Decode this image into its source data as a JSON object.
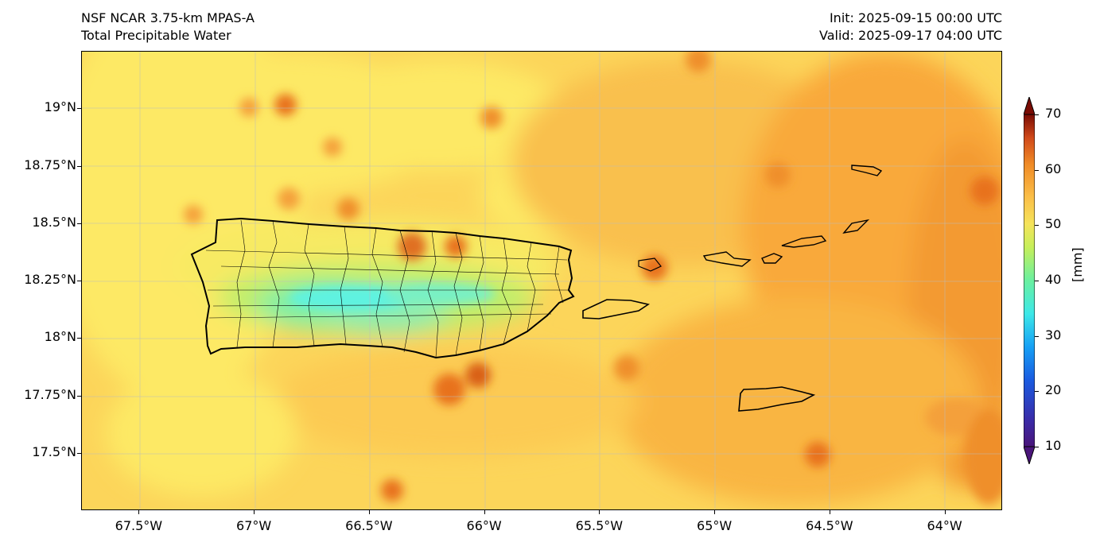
{
  "header": {
    "left_line1": "NSF NCAR 3.75-km MPAS-A",
    "left_line2": "Total Precipitable Water",
    "right_line1": "Init: 2025-09-15 00:00 UTC",
    "right_line2": "Valid: 2025-09-17 04:00 UTC"
  },
  "map": {
    "lon_range": [
      -67.75,
      -63.75
    ],
    "lat_range": [
      17.25,
      19.25
    ],
    "lon_ticks": [
      {
        "value": -67.5,
        "label": "67.5°W"
      },
      {
        "value": -67.0,
        "label": "67°W"
      },
      {
        "value": -66.5,
        "label": "66.5°W"
      },
      {
        "value": -66.0,
        "label": "66°W"
      },
      {
        "value": -65.5,
        "label": "65.5°W"
      },
      {
        "value": -65.0,
        "label": "65°W"
      },
      {
        "value": -64.5,
        "label": "64.5°W"
      },
      {
        "value": -64.0,
        "label": "64°W"
      }
    ],
    "lat_ticks": [
      {
        "value": 19.0,
        "label": "19°N"
      },
      {
        "value": 18.75,
        "label": "18.75°N"
      },
      {
        "value": 18.5,
        "label": "18.5°N"
      },
      {
        "value": 18.25,
        "label": "18.25°N"
      },
      {
        "value": 18.0,
        "label": "18°N"
      },
      {
        "value": 17.75,
        "label": "17.75°N"
      },
      {
        "value": 17.5,
        "label": "17.5°N"
      }
    ],
    "gridlines": true,
    "colors": {
      "background": "#fcd55a",
      "yellow": "#fde965",
      "orange": "#f9a93a",
      "dark_orange": "#e8721b",
      "green": "#9ce86a",
      "cyan": "#5ef2e0"
    }
  },
  "colorbar": {
    "unit": "[mm]",
    "labels": [
      "70",
      "60",
      "50",
      "40",
      "30",
      "20",
      "10"
    ],
    "min": 10,
    "max": 70,
    "extend": "both"
  }
}
